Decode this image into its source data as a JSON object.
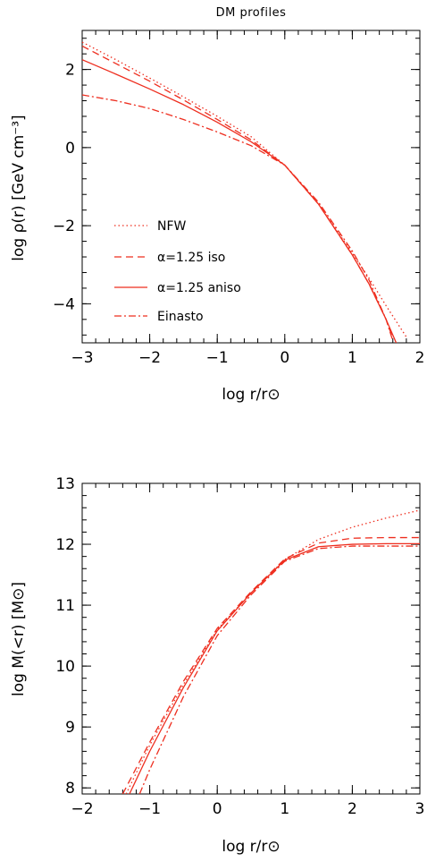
{
  "color": "#ee2e1f",
  "chart_data": [
    {
      "type": "line",
      "title": "DM profiles",
      "xlabel": "log r/r⊙",
      "ylabel": "log ρ(r) [GeV cm⁻³]",
      "xlim": [
        -3,
        2
      ],
      "ylim": [
        -5,
        3
      ],
      "x_ticks": [
        "−3",
        "−2",
        "−1",
        "0",
        "1",
        "2"
      ],
      "y_ticks": [
        "−4",
        "−2",
        "0",
        "2"
      ],
      "legend": "lower-left",
      "series": [
        {
          "name": "NFW",
          "style": "dotted",
          "x": [
            -3,
            -2.5,
            -2,
            -1.5,
            -1,
            -0.5,
            0,
            0.5,
            1,
            1.25,
            1.5,
            1.8
          ],
          "y": [
            2.7,
            2.25,
            1.78,
            1.3,
            0.8,
            0.28,
            -0.45,
            -1.45,
            -2.7,
            -3.35,
            -4.05,
            -4.85
          ]
        },
        {
          "name": "α=1.25 iso",
          "style": "dashed",
          "x": [
            -3,
            -2.5,
            -2,
            -1.5,
            -1,
            -0.5,
            0,
            0.5,
            1,
            1.25,
            1.5,
            1.6
          ],
          "y": [
            2.6,
            2.15,
            1.7,
            1.22,
            0.72,
            0.2,
            -0.45,
            -1.45,
            -2.75,
            -3.5,
            -4.4,
            -4.9
          ]
        },
        {
          "name": "α=1.25 aniso",
          "style": "solid",
          "x": [
            -3,
            -2.5,
            -2,
            -1.5,
            -1,
            -0.5,
            0,
            0.5,
            1,
            1.25,
            1.5,
            1.65
          ],
          "y": [
            2.25,
            1.88,
            1.5,
            1.1,
            0.65,
            0.15,
            -0.45,
            -1.45,
            -2.75,
            -3.5,
            -4.4,
            -5.0
          ]
        },
        {
          "name": "Einasto",
          "style": "dashdot",
          "x": [
            -3,
            -2.5,
            -2,
            -1.5,
            -1,
            -0.5,
            0,
            0.5,
            1,
            1.25,
            1.5,
            1.6
          ],
          "y": [
            1.35,
            1.2,
            1.0,
            0.72,
            0.4,
            0.05,
            -0.45,
            -1.4,
            -2.65,
            -3.4,
            -4.4,
            -4.95
          ]
        }
      ]
    },
    {
      "type": "line",
      "xlabel": "log r/r⊙",
      "ylabel": "log M(<r) [M⊙]",
      "xlim": [
        -2,
        3
      ],
      "ylim": [
        7.9,
        13
      ],
      "x_ticks": [
        "−2",
        "−1",
        "0",
        "1",
        "2",
        "3"
      ],
      "y_ticks": [
        "8",
        "9",
        "10",
        "11",
        "12",
        "13"
      ],
      "series": [
        {
          "style": "dotted",
          "x": [
            -1.35,
            -1,
            -0.5,
            0,
            0.5,
            1,
            1.5,
            2,
            2.5,
            3
          ],
          "y": [
            7.9,
            8.7,
            9.7,
            10.6,
            11.2,
            11.75,
            12.08,
            12.28,
            12.43,
            12.56
          ]
        },
        {
          "style": "dashed",
          "x": [
            -1.4,
            -1,
            -0.5,
            0,
            0.5,
            1,
            1.5,
            2,
            2.5,
            3
          ],
          "y": [
            7.9,
            8.75,
            9.75,
            10.62,
            11.22,
            11.76,
            12.02,
            12.1,
            12.11,
            12.11
          ]
        },
        {
          "style": "solid",
          "x": [
            -1.3,
            -1,
            -0.5,
            0,
            0.5,
            1,
            1.5,
            2,
            2.5,
            3
          ],
          "y": [
            7.9,
            8.6,
            9.65,
            10.58,
            11.2,
            11.74,
            11.96,
            12.0,
            12.01,
            12.01
          ]
        },
        {
          "style": "dashdot",
          "x": [
            -1.15,
            -1,
            -0.5,
            0,
            0.5,
            1,
            1.5,
            2,
            2.5,
            3
          ],
          "y": [
            7.9,
            8.3,
            9.5,
            10.5,
            11.17,
            11.72,
            11.93,
            11.97,
            11.97,
            11.97
          ]
        }
      ]
    }
  ]
}
